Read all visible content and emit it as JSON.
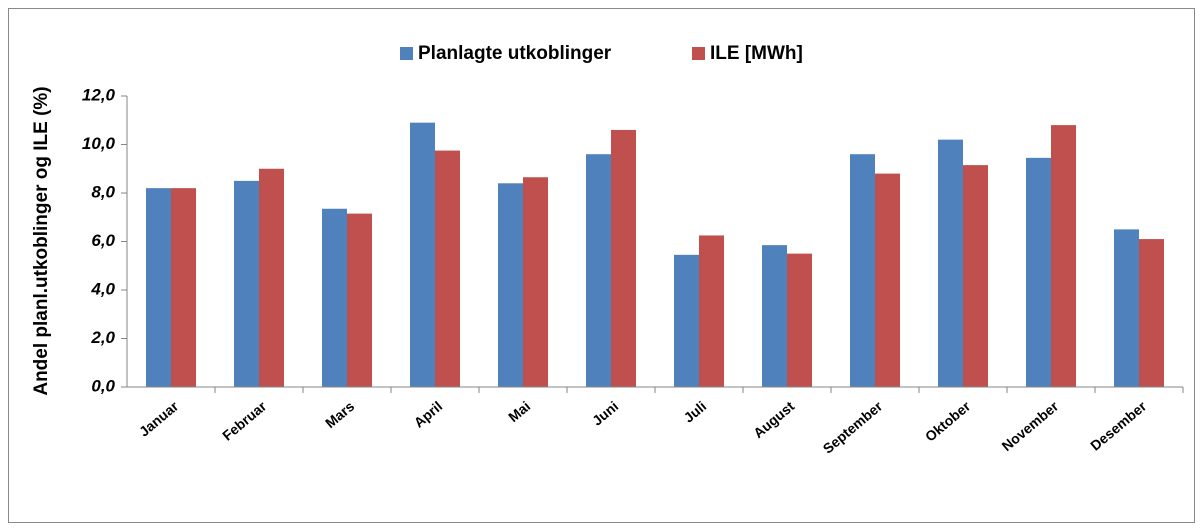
{
  "chart_data": {
    "type": "bar",
    "y_axis_label": "Andel planl.utkoblinger og ILE (%)",
    "categories": [
      "Januar",
      "Februar",
      "Mars",
      "April",
      "Mai",
      "Juni",
      "Juli",
      "August",
      "September",
      "Oktober",
      "November",
      "Desember"
    ],
    "series": [
      {
        "name": "Planlagte utkoblinger",
        "color": "#4f81bd",
        "values": [
          8.2,
          8.5,
          7.35,
          10.9,
          8.4,
          9.6,
          5.45,
          5.85,
          9.6,
          10.2,
          9.45,
          6.5
        ]
      },
      {
        "name": "ILE [MWh]",
        "color": "#c0504d",
        "values": [
          8.2,
          9.0,
          7.15,
          9.75,
          8.65,
          10.6,
          6.25,
          5.5,
          8.8,
          9.15,
          10.8,
          6.1
        ]
      }
    ],
    "ylim": [
      0,
      12
    ],
    "yticks": [
      {
        "value": 0,
        "label": "0,0"
      },
      {
        "value": 2,
        "label": "2,0"
      },
      {
        "value": 4,
        "label": "4,0"
      },
      {
        "value": 6,
        "label": "6,0"
      },
      {
        "value": 8,
        "label": "8,0"
      },
      {
        "value": 10,
        "label": "10,0"
      },
      {
        "value": 12,
        "label": "12,0"
      }
    ],
    "legend": "top",
    "grid": false
  }
}
